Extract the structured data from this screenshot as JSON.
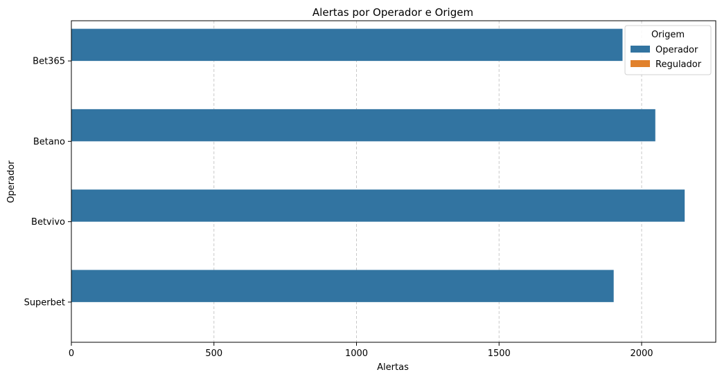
{
  "chart_data": {
    "type": "bar",
    "orientation": "horizontal",
    "title": "Alertas por Operador e Origem",
    "xlabel": "Alertas",
    "ylabel": "Operador",
    "categories": [
      "Bet365",
      "Betano",
      "Betvivo",
      "Superbet"
    ],
    "series": [
      {
        "name": "Operador",
        "color": "#3274a1",
        "values": [
          1933,
          2048,
          2151,
          1902
        ]
      },
      {
        "name": "Regulador",
        "color": "#e1812c",
        "values": [
          0,
          0,
          0,
          0
        ]
      }
    ],
    "xlim": [
      0,
      2260
    ],
    "xticks": [
      0,
      500,
      1000,
      1500,
      2000
    ],
    "xtick_labels": [
      "0",
      "500",
      "1000",
      "1500",
      "2000"
    ],
    "grid": "x-dashed",
    "legend": {
      "title": "Origem",
      "placement": "top-right",
      "entries": [
        "Operador",
        "Regulador"
      ]
    }
  }
}
